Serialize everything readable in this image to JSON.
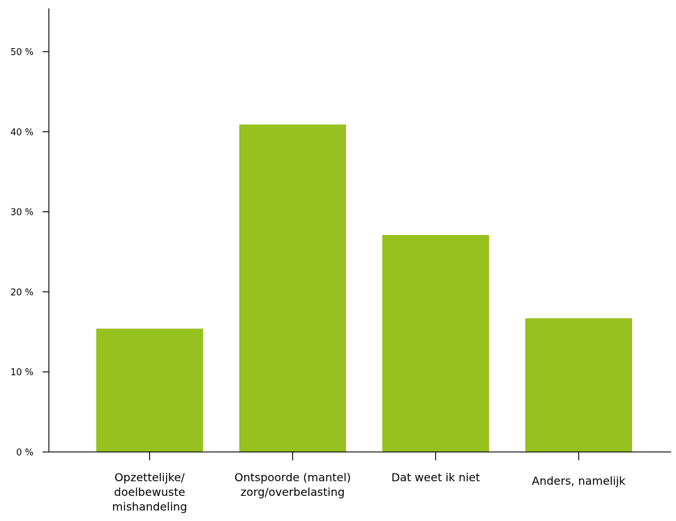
{
  "chart_data": {
    "type": "bar",
    "title": "",
    "xlabel": "",
    "ylabel": "",
    "categories": [
      [
        "Opzettelijke/",
        "doelbewuste",
        "mishandeling"
      ],
      [
        "Ontspoorde (mantel)",
        "zorg/overbelasting"
      ],
      [
        "Dat weet ik niet"
      ],
      [
        "Anders, namelijk"
      ]
    ],
    "values": [
      15.4,
      40.9,
      27.1,
      16.7
    ],
    "ylim": [
      0,
      55
    ],
    "yticks": [
      0,
      10,
      20,
      30,
      40,
      50
    ],
    "ytick_labels": [
      "0 %",
      "10 %",
      "20 %",
      "30 %",
      "40 %",
      "50 %"
    ],
    "bar_color": "#96c11f",
    "axis_color": "#000000",
    "grid": false,
    "legend": "none"
  }
}
